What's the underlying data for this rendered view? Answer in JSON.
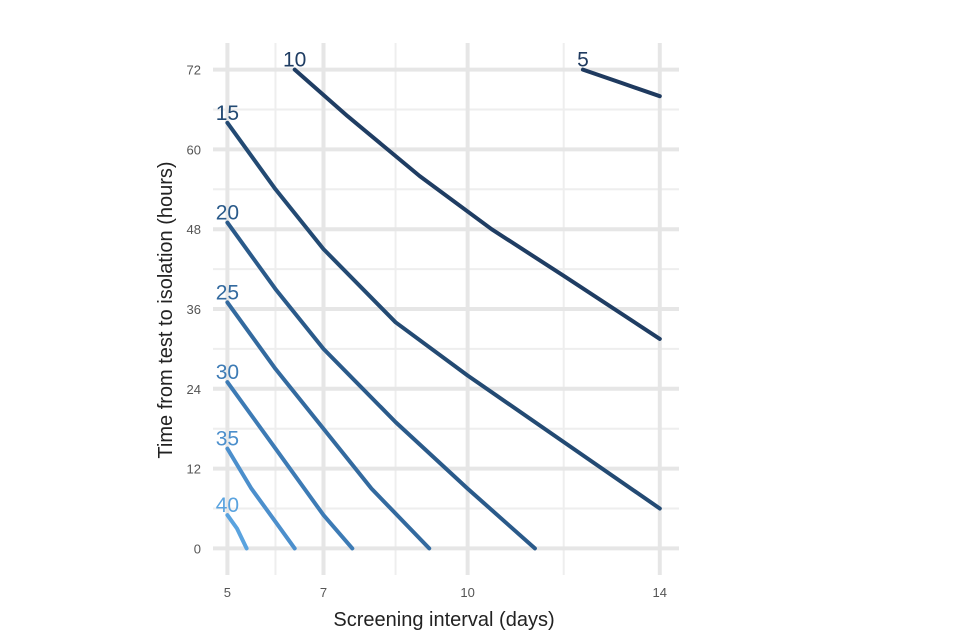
{
  "chart_data": {
    "type": "line",
    "xlabel": "Screening interval (days)",
    "ylabel": "Time from test to isolation (hours)",
    "xlim": [
      4.7,
      14.4
    ],
    "ylim": [
      -4,
      76
    ],
    "x_ticks": [
      5,
      7,
      10,
      14
    ],
    "y_ticks": [
      0,
      12,
      24,
      36,
      48,
      60,
      72
    ],
    "x_minor_gridlines": [
      6,
      8.5,
      12
    ],
    "y_minor_gridlines": [
      6,
      18,
      30,
      42,
      54,
      66
    ],
    "grid": true,
    "legend": "none",
    "series": [
      {
        "name": "5",
        "color": "#1f3a5f",
        "x": [
          12.4,
          13.2,
          14.0
        ],
        "y": [
          72,
          70,
          68
        ]
      },
      {
        "name": "10",
        "color": "#1f3d63",
        "x": [
          6.4,
          7.5,
          9.0,
          10.5,
          12.0,
          14.0
        ],
        "y": [
          72,
          65,
          56,
          48,
          41,
          31.5
        ]
      },
      {
        "name": "15",
        "color": "#234a73",
        "x": [
          5.0,
          6.0,
          7.0,
          8.5,
          10.0,
          12.0,
          14.0
        ],
        "y": [
          64,
          54,
          45,
          34,
          26,
          16,
          6
        ]
      },
      {
        "name": "20",
        "color": "#2a5a8a",
        "x": [
          5.0,
          6.0,
          7.0,
          8.5,
          10.0,
          11.4
        ],
        "y": [
          49,
          39,
          30,
          19,
          9,
          0
        ]
      },
      {
        "name": "25",
        "color": "#336a9f",
        "x": [
          5.0,
          6.0,
          7.0,
          8.0,
          9.2
        ],
        "y": [
          37,
          27,
          18,
          9,
          0
        ]
      },
      {
        "name": "30",
        "color": "#3d7bb5",
        "x": [
          5.0,
          6.0,
          7.0,
          7.6
        ],
        "y": [
          25,
          15,
          5,
          0
        ]
      },
      {
        "name": "35",
        "color": "#4c8fcc",
        "x": [
          5.0,
          5.5,
          6.0,
          6.4
        ],
        "y": [
          15,
          9,
          4,
          0
        ]
      },
      {
        "name": "40",
        "color": "#5aa3df",
        "x": [
          5.0,
          5.2,
          5.4
        ],
        "y": [
          5,
          3,
          0
        ]
      }
    ]
  }
}
